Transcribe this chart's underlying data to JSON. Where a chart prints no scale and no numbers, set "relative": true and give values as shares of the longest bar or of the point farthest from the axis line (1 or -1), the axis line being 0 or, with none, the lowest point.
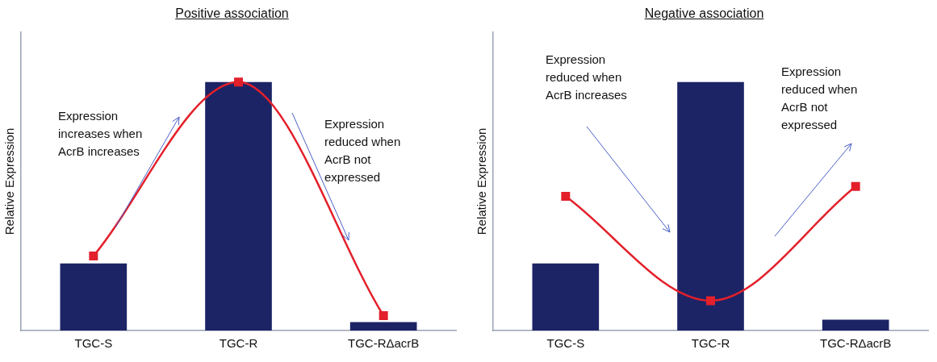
{
  "chart_data": [
    {
      "type": "bar",
      "title": "Positive association",
      "ylabel": "Relative Expression",
      "relative": true,
      "categories": [
        "TGC-S",
        "TGC-R",
        "TGC-RΔacrB"
      ],
      "marker": "square",
      "grid": false,
      "legend": false,
      "series": [
        {
          "color": "#1c2466",
          "values": [
            0.27,
            1,
            0.034
          ]
        },
        {
          "type": "line",
          "color": "#e3202b",
          "values": [
            0.3,
            1,
            0.06
          ]
        }
      ],
      "annotations": [
        "Expression increases when AcrB increases",
        "Expression reduced when AcrB not expressed"
      ]
    },
    {
      "type": "bar",
      "title": "Negative association",
      "ylabel": "Relative Expression",
      "relative": true,
      "categories": [
        "TGC-S",
        "TGC-R",
        "TGC-RΔacrB"
      ],
      "marker": "square",
      "grid": false,
      "legend": false,
      "series": [
        {
          "color": "#1c2466",
          "values": [
            0.27,
            1,
            0.044
          ]
        },
        {
          "type": "line",
          "color": "#e3202b",
          "values": [
            0.54,
            0.12,
            0.58
          ]
        }
      ],
      "annotations": [
        "Expression reduced when AcrB increases",
        "Expression reduced when AcrB not expressed"
      ]
    }
  ]
}
